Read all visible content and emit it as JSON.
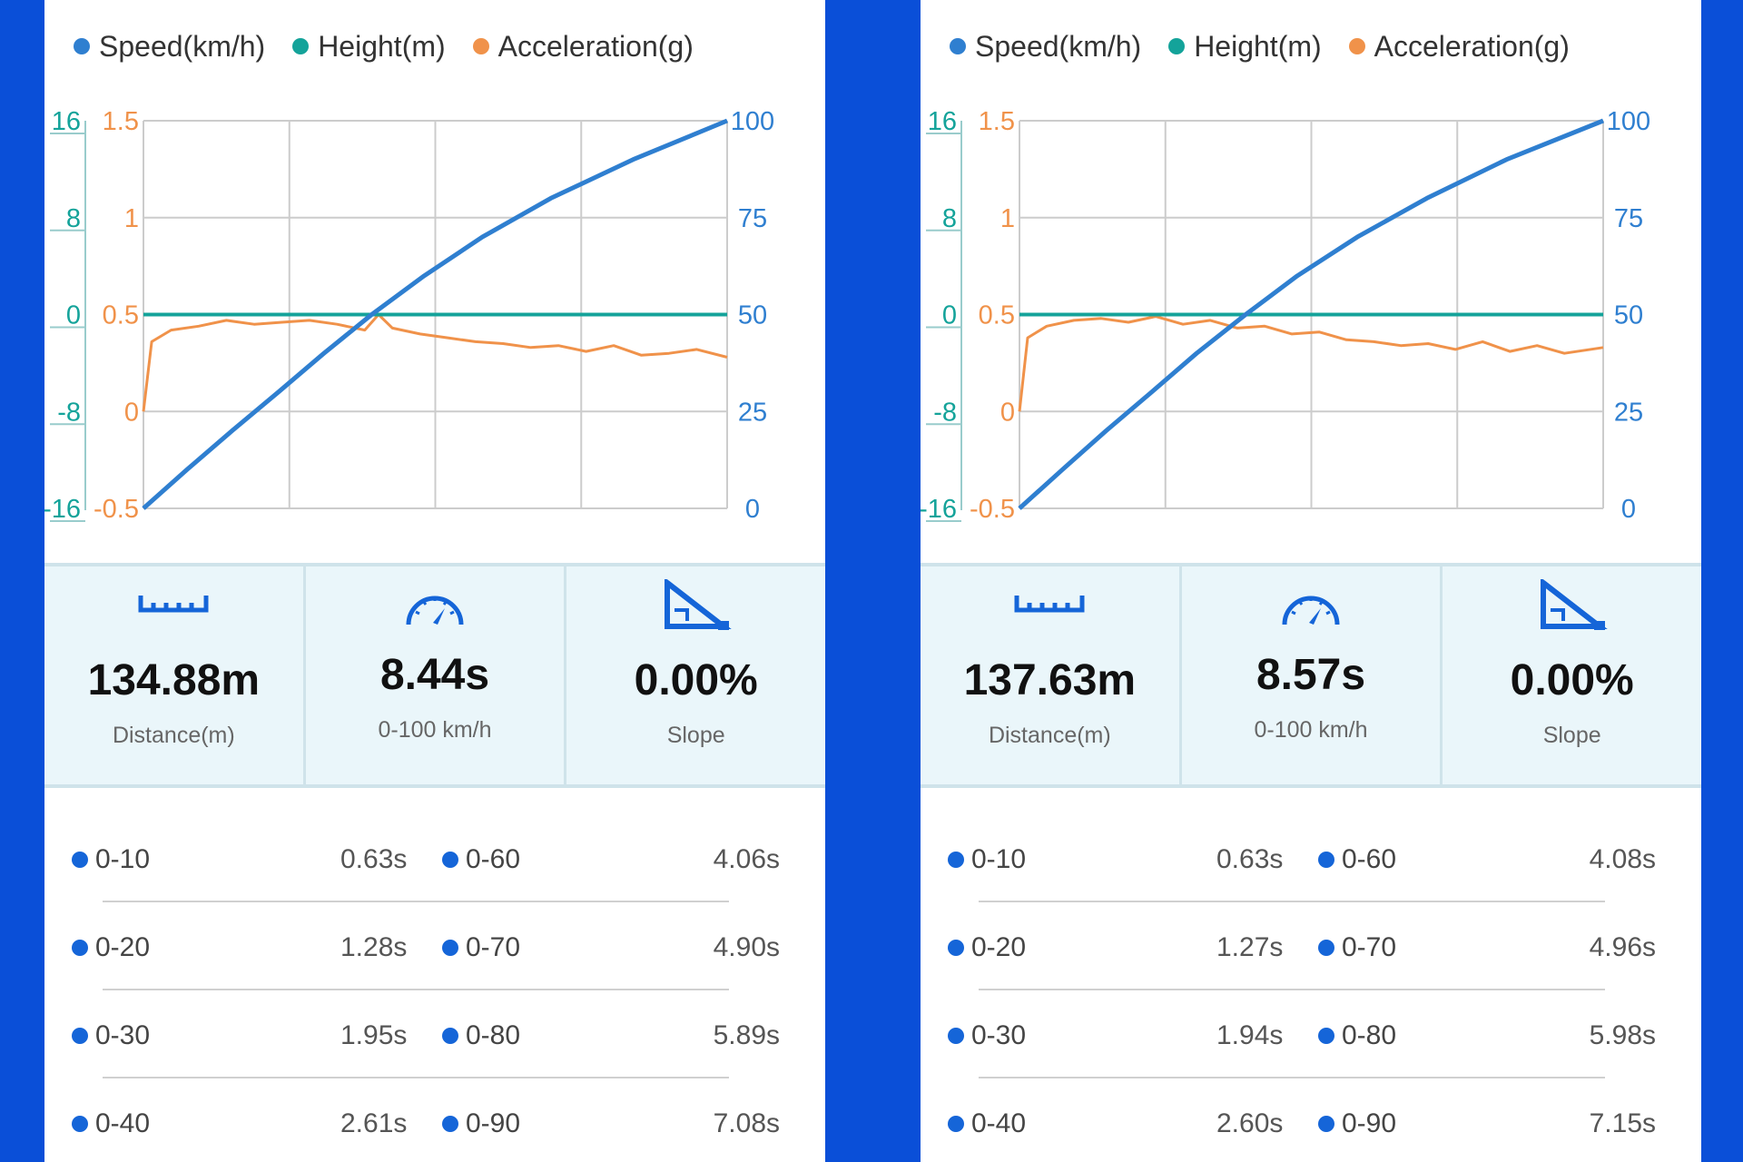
{
  "legend": [
    {
      "label": "Speed(km/h)",
      "color": "#2f7fd0"
    },
    {
      "label": "Height(m)",
      "color": "#14a39a"
    },
    {
      "label": "Acceleration(g)",
      "color": "#f0924a"
    }
  ],
  "colors": {
    "speed": "#2f7fd0",
    "height": "#14a39a",
    "accel": "#f0924a",
    "accent": "#1565d8",
    "background": "#0a4fd8"
  },
  "icons": {
    "distance": "ruler-icon",
    "time": "speedometer-icon",
    "slope": "slope-icon"
  },
  "panels": [
    {
      "chart_data": {
        "type": "line",
        "x_range": [
          0,
          8.44
        ],
        "axes": {
          "height": {
            "ticks": [
              "16",
              "8",
              "0",
              "-8",
              "-16"
            ],
            "range": [
              -16,
              16
            ]
          },
          "accel": {
            "ticks": [
              "1.5",
              "1",
              "0.5",
              "0",
              "-0.5"
            ],
            "range": [
              -0.5,
              1.5
            ]
          },
          "speed": {
            "ticks": [
              "100",
              "75",
              "50",
              "25",
              "0"
            ],
            "range": [
              0,
              100
            ]
          }
        },
        "grid": true,
        "series": [
          {
            "name": "Speed(km/h)",
            "x": [
              0,
              0.63,
              1.28,
              1.95,
              2.61,
              3.3,
              4.06,
              4.9,
              5.89,
              7.08,
              8.44
            ],
            "y": [
              0,
              10,
              20,
              30,
              40,
              50,
              60,
              70,
              80,
              90,
              100
            ]
          },
          {
            "name": "Height(m)",
            "x": [
              0,
              8.44
            ],
            "y": [
              0,
              0
            ]
          },
          {
            "name": "Acceleration(g)",
            "x": [
              0,
              0.12,
              0.4,
              0.8,
              1.2,
              1.6,
              2.0,
              2.4,
              2.8,
              3.2,
              3.4,
              3.6,
              4.0,
              4.4,
              4.8,
              5.2,
              5.6,
              6.0,
              6.4,
              6.8,
              7.2,
              7.6,
              8.0,
              8.44
            ],
            "y": [
              0,
              0.36,
              0.42,
              0.44,
              0.47,
              0.45,
              0.46,
              0.47,
              0.45,
              0.42,
              0.5,
              0.43,
              0.4,
              0.38,
              0.36,
              0.35,
              0.33,
              0.34,
              0.31,
              0.34,
              0.29,
              0.3,
              0.32,
              0.28
            ]
          }
        ]
      },
      "stats": [
        {
          "value": "134.88m",
          "label": "Distance(m)"
        },
        {
          "value": "8.44s",
          "label": "0-100 km/h"
        },
        {
          "value": "0.00%",
          "label": "Slope"
        }
      ],
      "splits": [
        {
          "l_label": "0-10",
          "l_time": "0.63s",
          "r_label": "0-60",
          "r_time": "4.06s"
        },
        {
          "l_label": "0-20",
          "l_time": "1.28s",
          "r_label": "0-70",
          "r_time": "4.90s"
        },
        {
          "l_label": "0-30",
          "l_time": "1.95s",
          "r_label": "0-80",
          "r_time": "5.89s"
        },
        {
          "l_label": "0-40",
          "l_time": "2.61s",
          "r_label": "0-90",
          "r_time": "7.08s"
        }
      ]
    },
    {
      "chart_data": {
        "type": "line",
        "x_range": [
          0,
          8.57
        ],
        "axes": {
          "height": {
            "ticks": [
              "16",
              "8",
              "0",
              "-8",
              "-16"
            ],
            "range": [
              -16,
              16
            ]
          },
          "accel": {
            "ticks": [
              "1.5",
              "1",
              "0.5",
              "0",
              "-0.5"
            ],
            "range": [
              -0.5,
              1.5
            ]
          },
          "speed": {
            "ticks": [
              "100",
              "75",
              "50",
              "25",
              "0"
            ],
            "range": [
              0,
              100
            ]
          }
        },
        "grid": true,
        "series": [
          {
            "name": "Speed(km/h)",
            "x": [
              0,
              0.63,
              1.27,
              1.94,
              2.6,
              3.32,
              4.08,
              4.96,
              5.98,
              7.15,
              8.57
            ],
            "y": [
              0,
              10,
              20,
              30,
              40,
              50,
              60,
              70,
              80,
              90,
              100
            ]
          },
          {
            "name": "Height(m)",
            "x": [
              0,
              8.57
            ],
            "y": [
              0,
              0
            ]
          },
          {
            "name": "Acceleration(g)",
            "x": [
              0,
              0.12,
              0.4,
              0.8,
              1.2,
              1.6,
              2.0,
              2.4,
              2.8,
              3.2,
              3.6,
              4.0,
              4.4,
              4.8,
              5.2,
              5.6,
              6.0,
              6.4,
              6.8,
              7.2,
              7.6,
              8.0,
              8.57
            ],
            "y": [
              0,
              0.38,
              0.44,
              0.47,
              0.48,
              0.46,
              0.49,
              0.45,
              0.47,
              0.43,
              0.44,
              0.4,
              0.41,
              0.37,
              0.36,
              0.34,
              0.35,
              0.32,
              0.36,
              0.31,
              0.34,
              0.3,
              0.33
            ]
          }
        ]
      },
      "stats": [
        {
          "value": "137.63m",
          "label": "Distance(m)"
        },
        {
          "value": "8.57s",
          "label": "0-100 km/h"
        },
        {
          "value": "0.00%",
          "label": "Slope"
        }
      ],
      "splits": [
        {
          "l_label": "0-10",
          "l_time": "0.63s",
          "r_label": "0-60",
          "r_time": "4.08s"
        },
        {
          "l_label": "0-20",
          "l_time": "1.27s",
          "r_label": "0-70",
          "r_time": "4.96s"
        },
        {
          "l_label": "0-30",
          "l_time": "1.94s",
          "r_label": "0-80",
          "r_time": "5.98s"
        },
        {
          "l_label": "0-40",
          "l_time": "2.60s",
          "r_label": "0-90",
          "r_time": "7.15s"
        }
      ]
    }
  ]
}
